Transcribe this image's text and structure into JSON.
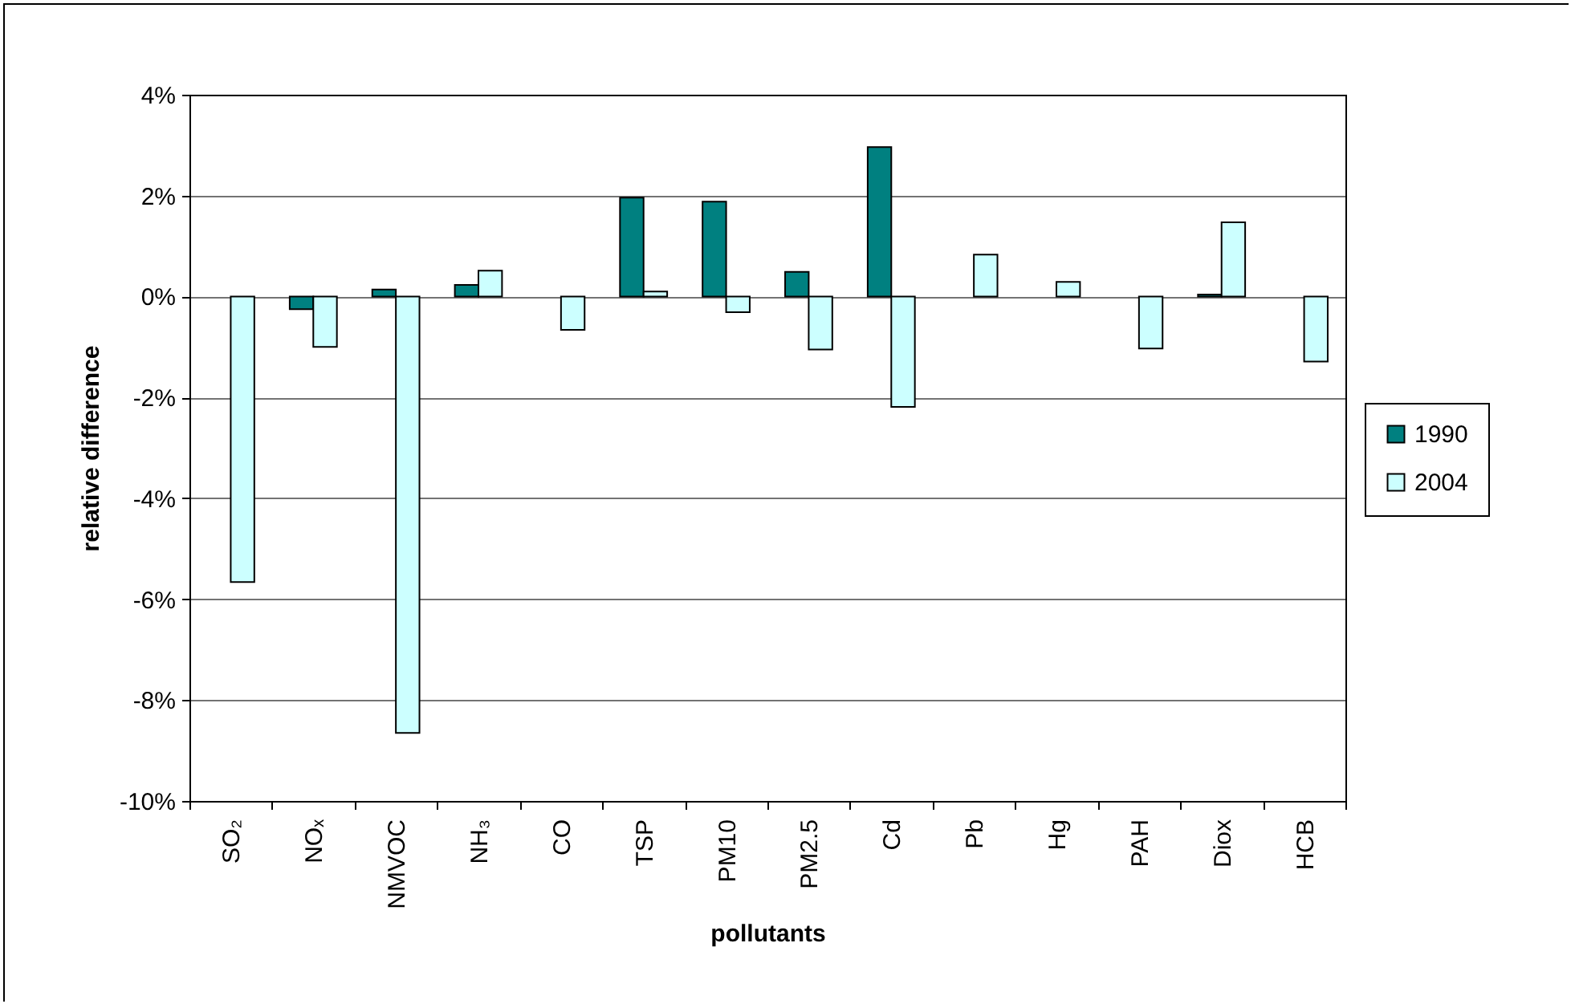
{
  "chart_data": {
    "type": "bar",
    "xlabel": "pollutants",
    "ylabel": "relative difference",
    "categories": [
      "SO₂",
      "NOₓ",
      "NMVOC",
      "NH₃",
      "CO",
      "TSP",
      "PM10",
      "PM2.5",
      "Cd",
      "Pb",
      "Hg",
      "PAH",
      "Diox",
      "HCB"
    ],
    "series": [
      {
        "name": "1990",
        "color": "#008080",
        "values": [
          null,
          -0.25,
          0.14,
          0.23,
          null,
          1.96,
          1.88,
          0.49,
          2.96,
          null,
          null,
          null,
          0.04,
          null
        ]
      },
      {
        "name": "2004",
        "color": "#ccffff",
        "values": [
          -5.66,
          -1.0,
          -8.65,
          0.51,
          -0.66,
          0.1,
          -0.31,
          -1.05,
          -2.19,
          0.83,
          0.29,
          -1.03,
          1.47,
          -1.29
        ]
      }
    ],
    "ylim": [
      -10,
      4
    ],
    "yticks": [
      {
        "value": -10,
        "label": "-10%"
      },
      {
        "value": -8,
        "label": "-8%"
      },
      {
        "value": -6,
        "label": "-6%"
      },
      {
        "value": -4,
        "label": "-4%"
      },
      {
        "value": -2,
        "label": "-2%"
      },
      {
        "value": 0,
        "label": "0%"
      },
      {
        "value": 2,
        "label": "2%"
      },
      {
        "value": 4,
        "label": "4%"
      }
    ],
    "grid": "y",
    "legend": "right"
  }
}
